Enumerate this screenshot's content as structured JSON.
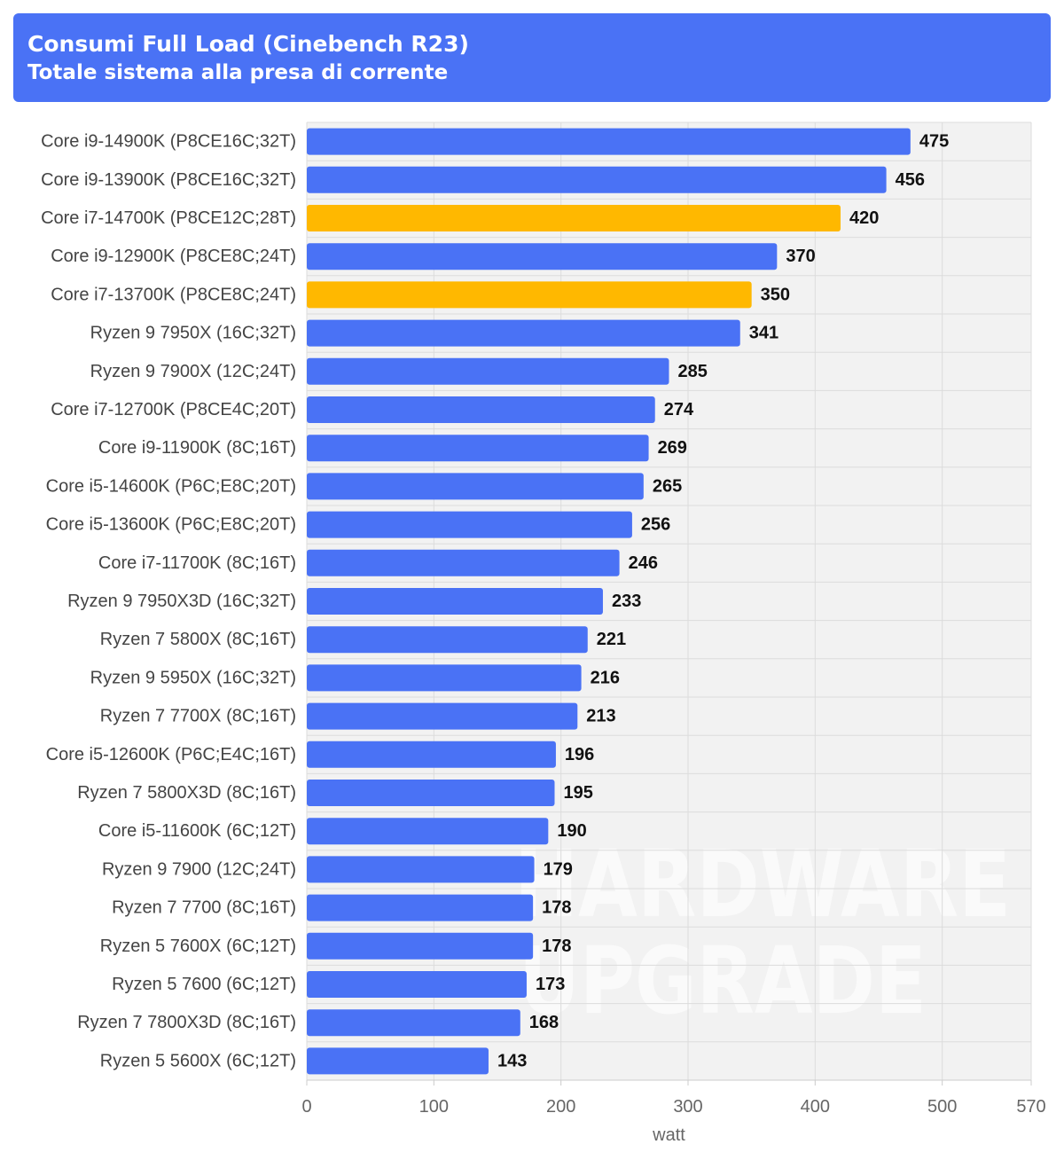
{
  "header": {
    "title": "Consumi Full Load (Cinebench R23)",
    "subtitle": "Totale sistema alla presa di corrente"
  },
  "watermark": {
    "line1": "HARDWARE",
    "line2": "UPGRADE"
  },
  "colors": {
    "header_bg": "#4a72f5",
    "bar_default": "#4a72f5",
    "bar_highlight": "#ffb800",
    "plot_bg": "#f2f2f2",
    "grid": "#dcdcdc"
  },
  "chart_data": {
    "type": "bar",
    "orientation": "horizontal",
    "title": "Consumi Full Load (Cinebench R23)",
    "subtitle": "Totale sistema alla presa di corrente",
    "xlabel": "watt",
    "ylabel": "",
    "xlim": [
      0,
      570
    ],
    "xticks": [
      0,
      100,
      200,
      300,
      400,
      500,
      570
    ],
    "grid": true,
    "legend": "none",
    "categories": [
      "Core i9-14900K (P8CE16C;32T)",
      "Core i9-13900K (P8CE16C;32T)",
      "Core i7-14700K (P8CE12C;28T)",
      "Core i9-12900K (P8CE8C;24T)",
      "Core i7-13700K (P8CE8C;24T)",
      "Ryzen 9 7950X (16C;32T)",
      "Ryzen 9 7900X (12C;24T)",
      "Core i7-12700K (P8CE4C;20T)",
      "Core i9-11900K (8C;16T)",
      "Core i5-14600K (P6C;E8C;20T)",
      "Core i5-13600K (P6C;E8C;20T)",
      "Core i7-11700K (8C;16T)",
      "Ryzen 9 7950X3D (16C;32T)",
      "Ryzen 7 5800X (8C;16T)",
      "Ryzen 9 5950X (16C;32T)",
      "Ryzen 7 7700X (8C;16T)",
      "Core i5-12600K (P6C;E4C;16T)",
      "Ryzen 7 5800X3D (8C;16T)",
      "Core i5-11600K (6C;12T)",
      "Ryzen 9 7900 (12C;24T)",
      "Ryzen 7 7700 (8C;16T)",
      "Ryzen 5 7600X (6C;12T)",
      "Ryzen 5 7600 (6C;12T)",
      "Ryzen 7 7800X3D (8C;16T)",
      "Ryzen 5 5600X (6C;12T)"
    ],
    "values": [
      475,
      456,
      420,
      370,
      350,
      341,
      285,
      274,
      269,
      265,
      256,
      246,
      233,
      221,
      216,
      213,
      196,
      195,
      190,
      179,
      178,
      178,
      173,
      168,
      143
    ],
    "highlighted": [
      "Core i7-14700K (P8CE12C;28T)",
      "Core i7-13700K (P8CE8C;24T)"
    ]
  }
}
